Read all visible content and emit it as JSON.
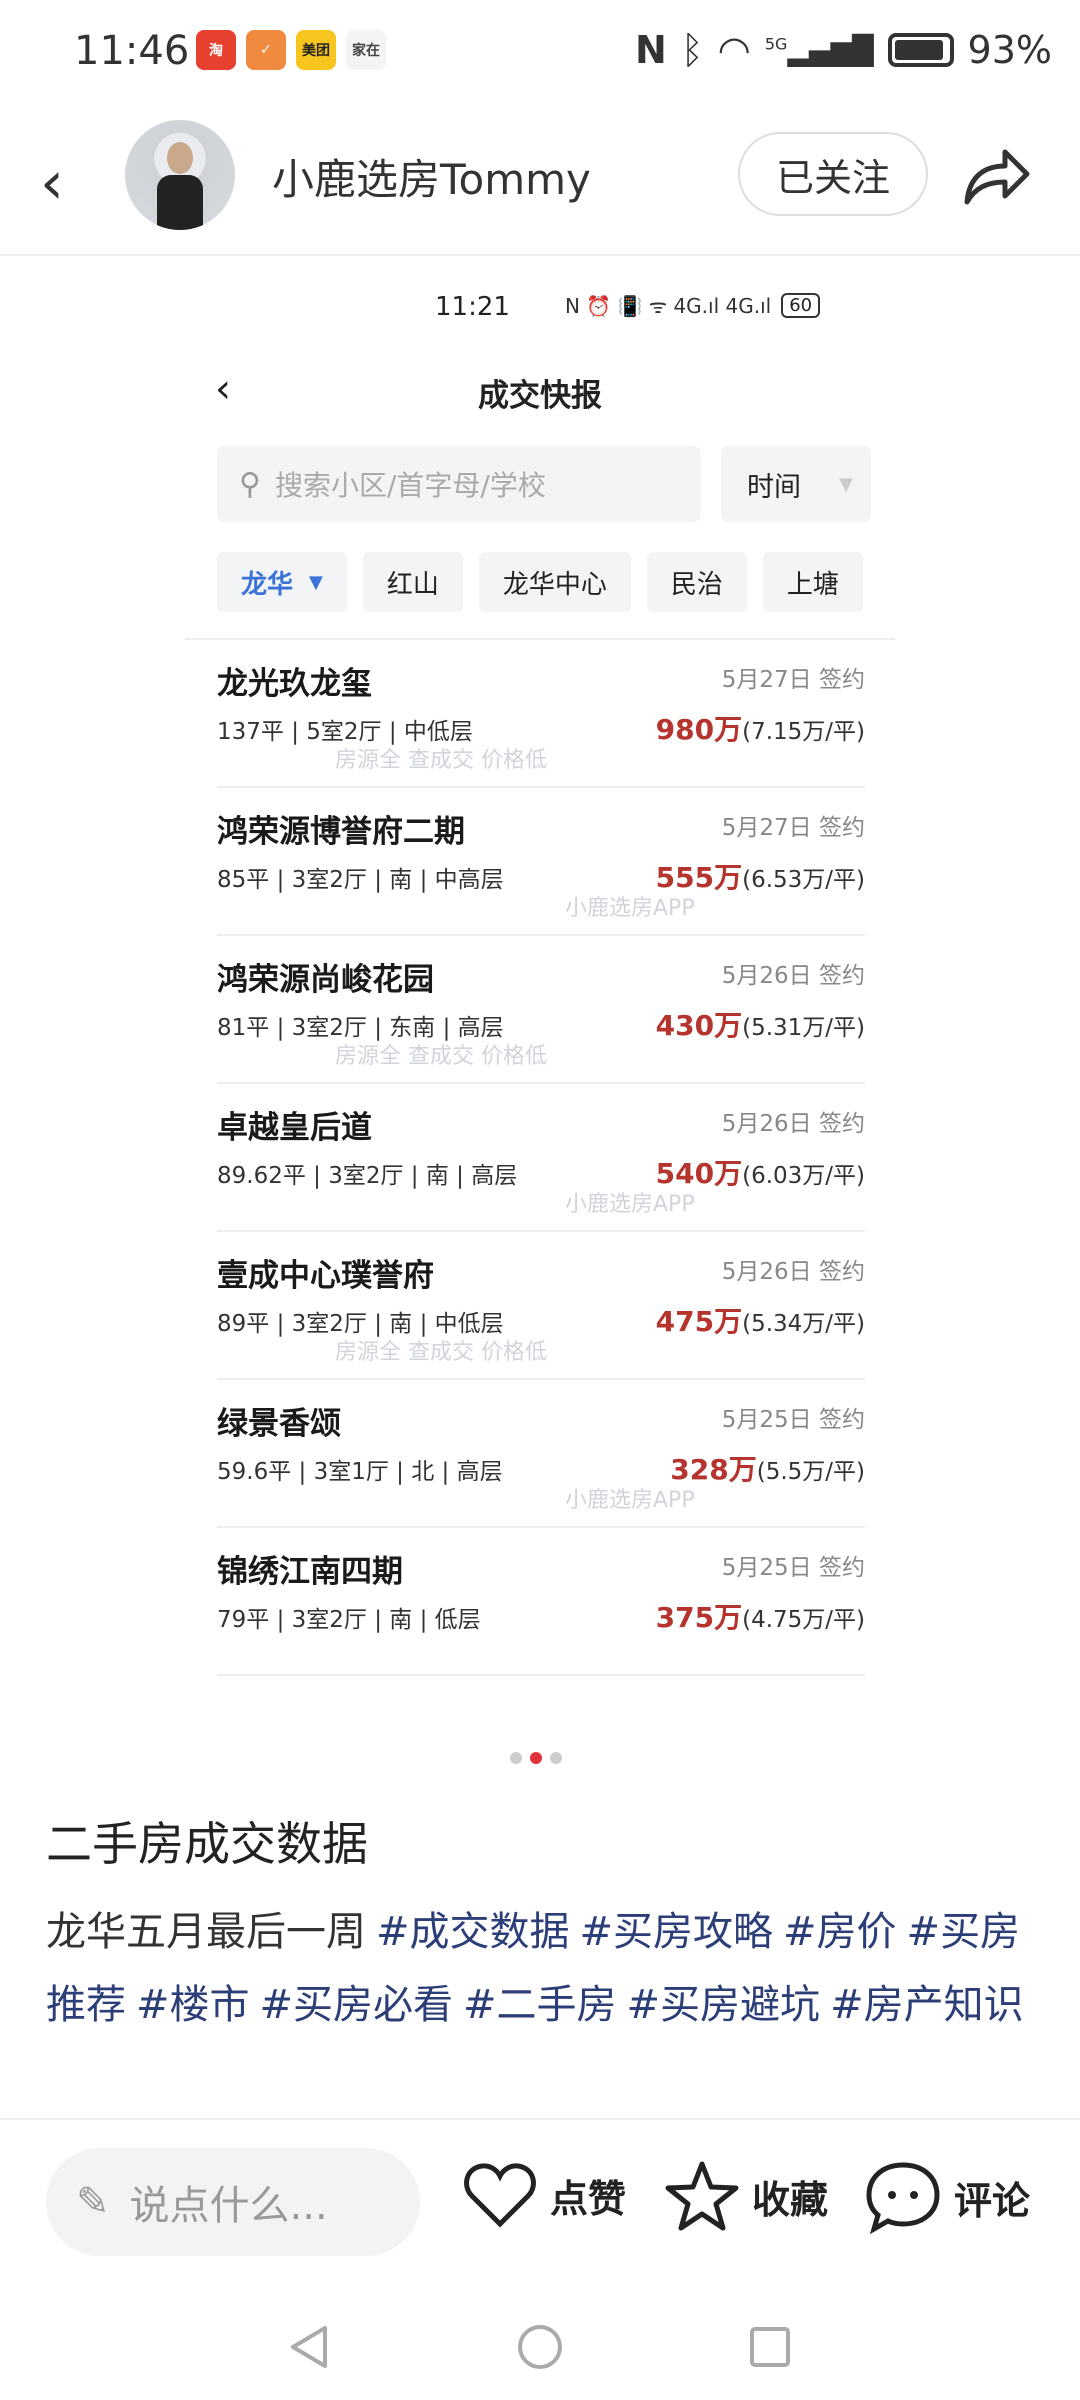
{
  "status_bar": {
    "time": "11:46",
    "notification_apps": [
      "淘",
      "✓",
      "美团",
      "家在"
    ],
    "battery": "93%",
    "network": "5G",
    "icons": [
      "nfc-icon",
      "bluetooth-icon",
      "wifi-icon",
      "signal-icon",
      "battery-icon"
    ]
  },
  "header": {
    "username": "小鹿选房Tommy",
    "follow_label": "已关注"
  },
  "screenshot": {
    "status_time": "11:21",
    "status_icons": "N ⏰ 📳 ᯤ 4G.ıl 4G.ıl",
    "battery": "60",
    "title": "成交快报",
    "search_placeholder": "搜索小区/首字母/学校",
    "time_filter": "时间",
    "districts": [
      "龙华",
      "红山",
      "龙华中心",
      "民治",
      "上塘"
    ],
    "watermarks": [
      "房源全 查成交 价格低",
      "小鹿选房APP"
    ],
    "listings": [
      {
        "name": "龙光玖龙玺",
        "date": "5月27日 签约",
        "info": "137平 | 5室2厅 | 中低层",
        "price": "980万",
        "unit": "(7.15万/平)"
      },
      {
        "name": "鸿荣源博誉府二期",
        "date": "5月27日 签约",
        "info": "85平 | 3室2厅 | 南 | 中高层",
        "price": "555万",
        "unit": "(6.53万/平)"
      },
      {
        "name": "鸿荣源尚峻花园",
        "date": "5月26日 签约",
        "info": "81平 | 3室2厅 | 东南 | 高层",
        "price": "430万",
        "unit": "(5.31万/平)"
      },
      {
        "name": "卓越皇后道",
        "date": "5月26日 签约",
        "info": "89.62平 | 3室2厅 | 南 | 高层",
        "price": "540万",
        "unit": "(6.03万/平)"
      },
      {
        "name": "壹成中心璞誉府",
        "date": "5月26日 签约",
        "info": "89平 | 3室2厅 | 南 | 中低层",
        "price": "475万",
        "unit": "(5.34万/平)"
      },
      {
        "name": "绿景香颂",
        "date": "5月25日 签约",
        "info": "59.6平 | 3室1厅 | 北 | 高层",
        "price": "328万",
        "unit": "(5.5万/平)"
      },
      {
        "name": "锦绣江南四期",
        "date": "5月25日 签约",
        "info": "79平 | 3室2厅 | 南 | 低层",
        "price": "375万",
        "unit": "(4.75万/平)"
      }
    ]
  },
  "carousel": {
    "count": 3,
    "active": 1
  },
  "post": {
    "title": "二手房成交数据",
    "text": "龙华五月最后一周",
    "tags": [
      "#成交数据",
      "#买房攻略",
      "#房价",
      "#买房推荐",
      "#楼市",
      "#买房必看",
      "#二手房",
      "#买房避坑",
      "#房产知识"
    ]
  },
  "bottom_bar": {
    "comment_placeholder": "说点什么...",
    "like": "点赞",
    "favorite": "收藏",
    "comment": "评论"
  },
  "colors": {
    "price": "#b5342e",
    "accent": "#3a72d8",
    "tag": "#2c3e78",
    "carousel_active": "#e0333c"
  }
}
